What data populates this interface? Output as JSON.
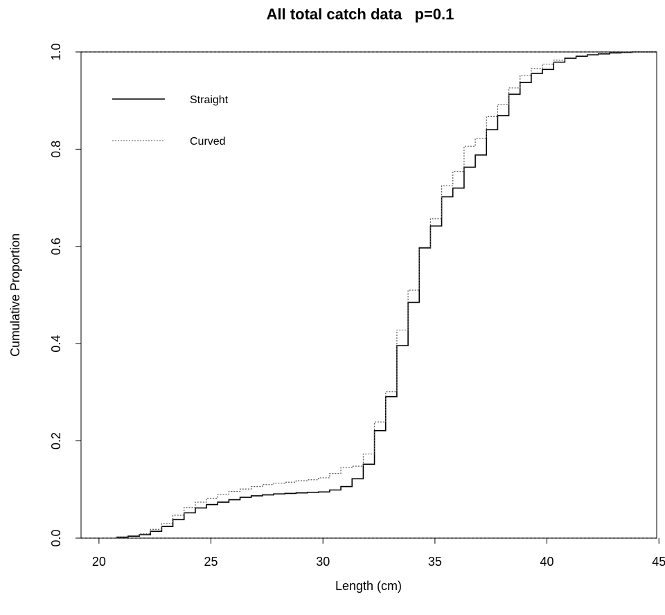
{
  "chart_data": {
    "type": "line",
    "title": "All total catch data   p=0.1",
    "xlabel": "Length (cm)",
    "ylabel": "Cumulative Proportion",
    "xlim": [
      19.2,
      44.9
    ],
    "ylim": [
      0.0,
      1.0
    ],
    "x_ticks": [
      "20",
      "25",
      "30",
      "35",
      "40",
      "45"
    ],
    "y_ticks": [
      "0.0",
      "0.2",
      "0.4",
      "0.6",
      "0.8",
      "1.0"
    ],
    "grid": false,
    "legend_position": "top-left",
    "reference_lines": [
      0.0,
      1.0
    ],
    "series": [
      {
        "name": "Straight",
        "style": "solid",
        "color": "#000000",
        "x": [
          20.8,
          21.3,
          21.8,
          22.3,
          22.8,
          23.3,
          23.8,
          24.3,
          24.8,
          25.3,
          25.8,
          26.3,
          26.8,
          27.3,
          27.8,
          28.3,
          28.8,
          29.3,
          29.8,
          30.3,
          30.8,
          31.3,
          31.8,
          32.3,
          32.8,
          33.3,
          33.8,
          34.3,
          34.8,
          35.3,
          35.8,
          36.3,
          36.8,
          37.3,
          37.8,
          38.3,
          38.8,
          39.3,
          39.8,
          40.3,
          40.8,
          41.3,
          41.8,
          42.3,
          42.8,
          43.3,
          43.8,
          44.3
        ],
        "y": [
          0.002,
          0.004,
          0.007,
          0.014,
          0.024,
          0.038,
          0.052,
          0.062,
          0.069,
          0.074,
          0.079,
          0.084,
          0.087,
          0.089,
          0.091,
          0.092,
          0.093,
          0.094,
          0.095,
          0.099,
          0.106,
          0.122,
          0.152,
          0.221,
          0.291,
          0.396,
          0.485,
          0.597,
          0.642,
          0.702,
          0.72,
          0.763,
          0.788,
          0.84,
          0.869,
          0.913,
          0.937,
          0.956,
          0.964,
          0.979,
          0.987,
          0.991,
          0.994,
          0.996,
          0.998,
          0.999,
          1.0,
          1.0
        ]
      },
      {
        "name": "Curved",
        "style": "dotted",
        "color": "#000000",
        "x": [
          20.8,
          21.3,
          21.8,
          22.3,
          22.8,
          23.3,
          23.8,
          24.3,
          24.8,
          25.3,
          25.8,
          26.3,
          26.8,
          27.3,
          27.8,
          28.3,
          28.8,
          29.3,
          29.8,
          30.3,
          30.8,
          31.3,
          31.8,
          32.3,
          32.8,
          33.3,
          33.8,
          34.3,
          34.8,
          35.3,
          35.8,
          36.3,
          36.8,
          37.3,
          37.8,
          38.3,
          38.8,
          39.3,
          39.8,
          40.3,
          40.8,
          41.3,
          41.8,
          42.3,
          42.8,
          43.3,
          43.8,
          44.3
        ],
        "y": [
          0.002,
          0.005,
          0.009,
          0.018,
          0.03,
          0.047,
          0.063,
          0.074,
          0.082,
          0.09,
          0.096,
          0.101,
          0.106,
          0.11,
          0.113,
          0.115,
          0.118,
          0.12,
          0.124,
          0.133,
          0.145,
          0.148,
          0.173,
          0.239,
          0.301,
          0.428,
          0.51,
          0.598,
          0.657,
          0.725,
          0.754,
          0.806,
          0.822,
          0.867,
          0.892,
          0.926,
          0.952,
          0.966,
          0.975,
          0.983,
          0.988,
          0.992,
          0.995,
          0.997,
          0.999,
          1.0,
          1.0,
          1.0
        ]
      }
    ]
  }
}
